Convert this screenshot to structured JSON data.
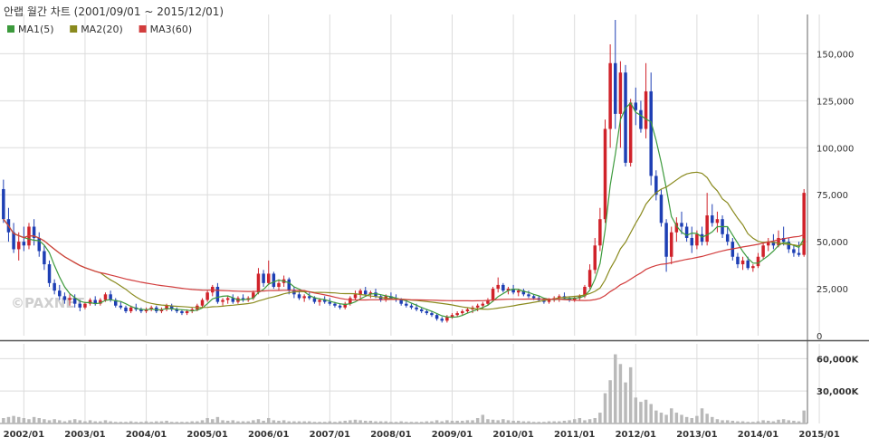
{
  "header": {
    "title": "안랩 월간 차트 (2001/09/01 ~ 2015/12/01)"
  },
  "legend": [
    {
      "label": "MA1(5)",
      "color": "#3c9a3c"
    },
    {
      "label": "MA2(20)",
      "color": "#8a8a1e"
    },
    {
      "label": "MA3(60)",
      "color": "#d23c3c"
    }
  ],
  "watermark": "©PAXNET",
  "colors": {
    "up": "#d0222a",
    "down": "#1e3fb4",
    "volume": "#b9b9b9",
    "grid": "#dcdcdc"
  },
  "chart_data": [
    {
      "type": "candlestick",
      "title": "안랩 월간 차트 (2001/09/01 ~ 2015/12/01)",
      "x_tick_labels": [
        "2002/01",
        "2003/01",
        "2004/01",
        "2005/01",
        "2006/01",
        "2007/01",
        "2008/01",
        "2009/01",
        "2010/01",
        "2011/01",
        "2012/01",
        "2013/01",
        "2014/01",
        "2015/01"
      ],
      "y_tick_labels": [
        "0",
        "25,000",
        "50,000",
        "75,000",
        "100,000",
        "125,000",
        "150,000"
      ],
      "ylim": [
        0,
        168000
      ],
      "grid": true,
      "ohlc": [
        [
          78000,
          83000,
          60000,
          62000
        ],
        [
          62000,
          68000,
          50000,
          55000
        ],
        [
          55000,
          60000,
          44000,
          46000
        ],
        [
          46000,
          55000,
          40000,
          50000
        ],
        [
          50000,
          58000,
          45000,
          48000
        ],
        [
          48000,
          60000,
          46000,
          58000
        ],
        [
          58000,
          62000,
          48000,
          52000
        ],
        [
          52000,
          55000,
          42000,
          45000
        ],
        [
          45000,
          48000,
          35000,
          38000
        ],
        [
          38000,
          40000,
          26000,
          28000
        ],
        [
          28000,
          30000,
          22000,
          24000
        ],
        [
          24000,
          27000,
          19000,
          21000
        ],
        [
          21000,
          23000,
          17000,
          19000
        ],
        [
          19000,
          22000,
          16000,
          20000
        ],
        [
          20000,
          22000,
          15000,
          17000
        ],
        [
          17000,
          19000,
          13000,
          15000
        ],
        [
          15000,
          18000,
          14000,
          17000
        ],
        [
          17000,
          20000,
          16000,
          19000
        ],
        [
          19000,
          21000,
          16000,
          17000
        ],
        [
          17000,
          20000,
          16000,
          19000
        ],
        [
          19000,
          23000,
          18000,
          22000
        ],
        [
          22000,
          24000,
          18000,
          19000
        ],
        [
          19000,
          20000,
          15000,
          16000
        ],
        [
          16000,
          18000,
          14000,
          15000
        ],
        [
          15000,
          16000,
          12000,
          13000
        ],
        [
          13000,
          16000,
          12000,
          15000
        ],
        [
          15000,
          17000,
          13000,
          14000
        ],
        [
          14000,
          15000,
          12000,
          13000
        ],
        [
          13000,
          15000,
          12000,
          14000
        ],
        [
          14000,
          16000,
          13000,
          15000
        ],
        [
          15000,
          16000,
          12000,
          13000
        ],
        [
          13000,
          15000,
          12000,
          14000
        ],
        [
          14000,
          17000,
          13000,
          16000
        ],
        [
          16000,
          17000,
          13000,
          14000
        ],
        [
          14000,
          15000,
          12000,
          13000
        ],
        [
          13000,
          14000,
          11000,
          12000
        ],
        [
          12000,
          14000,
          11000,
          13000
        ],
        [
          13000,
          15000,
          12000,
          14000
        ],
        [
          14000,
          17000,
          13000,
          16000
        ],
        [
          16000,
          20000,
          15000,
          19000
        ],
        [
          19000,
          24000,
          18000,
          23000
        ],
        [
          23000,
          27000,
          21000,
          26000
        ],
        [
          26000,
          28000,
          17000,
          18000
        ],
        [
          18000,
          20000,
          16000,
          19000
        ],
        [
          19000,
          21000,
          17000,
          20000
        ],
        [
          20000,
          22000,
          17000,
          18000
        ],
        [
          18000,
          21000,
          17000,
          20000
        ],
        [
          20000,
          22000,
          18000,
          19000
        ],
        [
          19000,
          21000,
          18000,
          20000
        ],
        [
          20000,
          24000,
          19000,
          23000
        ],
        [
          23000,
          36000,
          22000,
          33000
        ],
        [
          33000,
          35000,
          26000,
          28000
        ],
        [
          28000,
          40000,
          27000,
          33000
        ],
        [
          33000,
          34000,
          25000,
          26000
        ],
        [
          26000,
          30000,
          24000,
          28000
        ],
        [
          28000,
          32000,
          26000,
          30000
        ],
        [
          30000,
          31000,
          22000,
          24000
        ],
        [
          24000,
          26000,
          20000,
          22000
        ],
        [
          22000,
          24000,
          19000,
          20000
        ],
        [
          20000,
          22000,
          18000,
          21000
        ],
        [
          21000,
          23000,
          19000,
          20000
        ],
        [
          20000,
          21000,
          17000,
          18000
        ],
        [
          18000,
          20000,
          16000,
          19000
        ],
        [
          19000,
          21000,
          17000,
          18000
        ],
        [
          18000,
          20000,
          16000,
          17000
        ],
        [
          17000,
          18000,
          15000,
          16000
        ],
        [
          16000,
          17000,
          14000,
          15000
        ],
        [
          15000,
          18000,
          14000,
          17000
        ],
        [
          17000,
          21000,
          16000,
          20000
        ],
        [
          20000,
          24000,
          19000,
          22000
        ],
        [
          22000,
          25000,
          20000,
          24000
        ],
        [
          24000,
          26000,
          21000,
          22000
        ],
        [
          22000,
          24000,
          20000,
          23000
        ],
        [
          23000,
          25000,
          20000,
          21000
        ],
        [
          21000,
          22000,
          18000,
          19000
        ],
        [
          19000,
          22000,
          18000,
          21000
        ],
        [
          21000,
          23000,
          19000,
          20000
        ],
        [
          20000,
          22000,
          18000,
          19000
        ],
        [
          19000,
          20000,
          16000,
          17000
        ],
        [
          17000,
          19000,
          15000,
          16000
        ],
        [
          16000,
          17000,
          14000,
          15000
        ],
        [
          15000,
          17000,
          13000,
          14000
        ],
        [
          14000,
          15000,
          12000,
          13000
        ],
        [
          13000,
          14000,
          11000,
          12000
        ],
        [
          12000,
          13000,
          10000,
          11000
        ],
        [
          11000,
          12000,
          8000,
          9000
        ],
        [
          9000,
          10000,
          7000,
          8000
        ],
        [
          8000,
          11000,
          7000,
          10000
        ],
        [
          10000,
          12000,
          9000,
          11000
        ],
        [
          11000,
          13000,
          10000,
          12000
        ],
        [
          12000,
          14000,
          11000,
          13000
        ],
        [
          13000,
          15000,
          12000,
          14000
        ],
        [
          14000,
          16000,
          12000,
          15000
        ],
        [
          15000,
          17000,
          13000,
          16000
        ],
        [
          16000,
          18000,
          14000,
          17000
        ],
        [
          17000,
          20000,
          16000,
          19000
        ],
        [
          19000,
          26000,
          18000,
          25000
        ],
        [
          25000,
          31000,
          23000,
          27000
        ],
        [
          27000,
          28000,
          23000,
          24000
        ],
        [
          24000,
          26000,
          22000,
          25000
        ],
        [
          25000,
          27000,
          22000,
          23000
        ],
        [
          23000,
          25000,
          21000,
          24000
        ],
        [
          24000,
          25000,
          21000,
          22000
        ],
        [
          22000,
          24000,
          20000,
          21000
        ],
        [
          21000,
          22000,
          19000,
          20000
        ],
        [
          20000,
          21000,
          18000,
          19000
        ],
        [
          19000,
          20000,
          17000,
          18000
        ],
        [
          18000,
          20000,
          17000,
          19000
        ],
        [
          19000,
          21000,
          18000,
          20000
        ],
        [
          20000,
          22000,
          18000,
          21000
        ],
        [
          21000,
          23000,
          19000,
          20000
        ],
        [
          20000,
          21000,
          18000,
          19000
        ],
        [
          19000,
          21000,
          18000,
          20000
        ],
        [
          20000,
          22000,
          19000,
          21000
        ],
        [
          21000,
          27000,
          20000,
          26000
        ],
        [
          26000,
          38000,
          25000,
          35000
        ],
        [
          35000,
          52000,
          33000,
          48000
        ],
        [
          48000,
          68000,
          45000,
          62000
        ],
        [
          62000,
          115000,
          60000,
          110000
        ],
        [
          110000,
          155000,
          100000,
          145000
        ],
        [
          145000,
          168000,
          110000,
          118000
        ],
        [
          118000,
          146000,
          100000,
          140000
        ],
        [
          140000,
          144000,
          90000,
          92000
        ],
        [
          92000,
          126000,
          90000,
          124000
        ],
        [
          124000,
          132000,
          112000,
          120000
        ],
        [
          120000,
          125000,
          108000,
          110000
        ],
        [
          110000,
          145000,
          105000,
          130000
        ],
        [
          130000,
          140000,
          80000,
          85000
        ],
        [
          85000,
          88000,
          72000,
          75000
        ],
        [
          75000,
          78000,
          58000,
          60000
        ],
        [
          60000,
          62000,
          34000,
          42000
        ],
        [
          42000,
          58000,
          38000,
          55000
        ],
        [
          55000,
          63000,
          50000,
          60000
        ],
        [
          60000,
          66000,
          54000,
          58000
        ],
        [
          58000,
          60000,
          50000,
          52000
        ],
        [
          52000,
          58000,
          44000,
          48000
        ],
        [
          48000,
          56000,
          46000,
          54000
        ],
        [
          54000,
          58000,
          48000,
          50000
        ],
        [
          50000,
          76000,
          48000,
          64000
        ],
        [
          64000,
          70000,
          58000,
          60000
        ],
        [
          60000,
          66000,
          55000,
          62000
        ],
        [
          62000,
          64000,
          52000,
          54000
        ],
        [
          54000,
          58000,
          48000,
          50000
        ],
        [
          50000,
          52000,
          40000,
          42000
        ],
        [
          42000,
          44000,
          36000,
          38000
        ],
        [
          38000,
          42000,
          35000,
          40000
        ],
        [
          40000,
          42000,
          35000,
          36000
        ],
        [
          36000,
          38000,
          34000,
          37000
        ],
        [
          37000,
          44000,
          36000,
          42000
        ],
        [
          42000,
          50000,
          41000,
          48000
        ],
        [
          48000,
          52000,
          45000,
          50000
        ],
        [
          50000,
          54000,
          46000,
          48000
        ],
        [
          48000,
          56000,
          47000,
          52000
        ],
        [
          52000,
          58000,
          48000,
          50000
        ],
        [
          50000,
          52000,
          44000,
          46000
        ],
        [
          46000,
          48000,
          42000,
          44000
        ],
        [
          44000,
          50000,
          42000,
          43000
        ],
        [
          43000,
          78000,
          42000,
          76000
        ]
      ],
      "series": [
        {
          "name": "MA1(5)"
        },
        {
          "name": "MA2(20)"
        },
        {
          "name": "MA3(60)"
        }
      ]
    },
    {
      "type": "bar",
      "title": "",
      "y_tick_labels": [
        "30,000K",
        "60,000K"
      ],
      "ylim": [
        0,
        72000
      ],
      "values": [
        5000,
        6000,
        7000,
        6000,
        5000,
        4000,
        6000,
        5000,
        4000,
        3000,
        4000,
        3000,
        2000,
        3000,
        4000,
        3000,
        2000,
        3000,
        2000,
        2000,
        3000,
        2000,
        1500,
        1500,
        1500,
        2000,
        1500,
        1500,
        2000,
        1500,
        2000,
        2000,
        2500,
        1500,
        1500,
        1500,
        1500,
        2000,
        2000,
        3000,
        5000,
        4000,
        6000,
        3000,
        2500,
        3000,
        2000,
        2000,
        2000,
        3000,
        4000,
        2500,
        5000,
        3000,
        2500,
        3000,
        2000,
        2000,
        2000,
        2000,
        2000,
        1500,
        1500,
        1500,
        2000,
        1500,
        2000,
        2500,
        3000,
        3500,
        3000,
        2500,
        2500,
        2000,
        2000,
        2000,
        1500,
        1500,
        2000,
        1500,
        1500,
        1500,
        1500,
        2000,
        2000,
        3000,
        2000,
        3000,
        2500,
        2500,
        2500,
        3000,
        3000,
        5000,
        8000,
        4000,
        3500,
        3000,
        4000,
        3000,
        2500,
        2500,
        2000,
        2000,
        1500,
        1500,
        1500,
        2000,
        2000,
        2000,
        2500,
        3000,
        4000,
        5000,
        3000,
        4000,
        5000,
        10000,
        28000,
        40000,
        64000,
        55000,
        38000,
        52000,
        24000,
        20000,
        22000,
        18000,
        12000,
        10000,
        8000,
        14000,
        10000,
        8000,
        6000,
        5000,
        7000,
        14000,
        9000,
        6000,
        4000,
        3000,
        3000,
        2500,
        2000,
        2000,
        1500,
        1500,
        2000,
        3000,
        2500,
        2000,
        3500,
        4000,
        3000,
        2500,
        2000,
        12000
      ]
    }
  ]
}
